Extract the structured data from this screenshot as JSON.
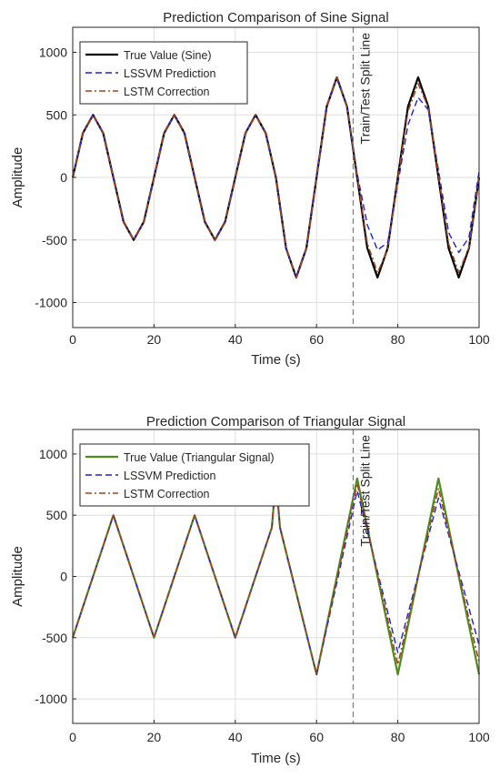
{
  "chart_data": [
    {
      "type": "line",
      "title": "Prediction Comparison of Sine Signal",
      "xlabel": "Time (s)",
      "ylabel": "Amplitude",
      "xlim": [
        0,
        100
      ],
      "ylim": [
        -1200,
        1200
      ],
      "xticks": [
        0,
        20,
        40,
        60,
        80,
        100
      ],
      "yticks": [
        -1000,
        -500,
        0,
        500,
        1000
      ],
      "grid": true,
      "legend_location": "top-left",
      "split": {
        "x": 69,
        "label": "Train/Test Split Line"
      },
      "series": [
        {
          "name": "True Value (Sine)",
          "color": "#000000",
          "style": "solid",
          "x": [
            0,
            2.5,
            5,
            7.5,
            10,
            12.5,
            15,
            17.5,
            20,
            22.5,
            25,
            27.5,
            30,
            32.5,
            35,
            37.5,
            40,
            42.5,
            45,
            47.5,
            50,
            52.5,
            55,
            57.5,
            60,
            62.5,
            65,
            67.5,
            70,
            72.5,
            75,
            77.5,
            80,
            82.5,
            85,
            87.5,
            90,
            92.5,
            95,
            97.5,
            100
          ],
          "y": [
            0,
            354,
            500,
            354,
            0,
            -354,
            -500,
            -354,
            0,
            354,
            500,
            354,
            0,
            -354,
            -500,
            -354,
            0,
            354,
            500,
            354,
            0,
            -566,
            -800,
            -566,
            0,
            566,
            800,
            566,
            0,
            -566,
            -800,
            -566,
            0,
            566,
            800,
            566,
            0,
            -566,
            -800,
            -566,
            0
          ]
        },
        {
          "name": "LSSVM Prediction",
          "color": "#1f1fd6",
          "style": "dashed",
          "x": [
            0,
            2.5,
            5,
            7.5,
            10,
            12.5,
            15,
            17.5,
            20,
            22.5,
            25,
            27.5,
            30,
            32.5,
            35,
            37.5,
            40,
            42.5,
            45,
            47.5,
            50,
            52.5,
            55,
            57.5,
            60,
            62.5,
            65,
            67.5,
            70,
            72.5,
            75,
            77.5,
            80,
            82.5,
            85,
            87.5,
            90,
            92.5,
            95,
            97.5,
            100
          ],
          "y": [
            0,
            354,
            500,
            354,
            0,
            -354,
            -500,
            -354,
            0,
            354,
            500,
            354,
            0,
            -354,
            -500,
            -354,
            0,
            354,
            500,
            354,
            0,
            -566,
            -800,
            -566,
            0,
            566,
            800,
            566,
            30,
            -380,
            -580,
            -520,
            -50,
            420,
            640,
            540,
            60,
            -440,
            -600,
            -480,
            50
          ]
        },
        {
          "name": "LSTM Correction",
          "color": "#a0451c",
          "style": "dashdot",
          "x": [
            0,
            2.5,
            5,
            7.5,
            10,
            12.5,
            15,
            17.5,
            20,
            22.5,
            25,
            27.5,
            30,
            32.5,
            35,
            37.5,
            40,
            42.5,
            45,
            47.5,
            50,
            52.5,
            55,
            57.5,
            60,
            62.5,
            65,
            67.5,
            70,
            72.5,
            75,
            77.5,
            80,
            82.5,
            85,
            87.5,
            90,
            92.5,
            95,
            97.5,
            100
          ],
          "y": [
            0,
            354,
            500,
            354,
            0,
            -354,
            -500,
            -354,
            0,
            354,
            500,
            354,
            0,
            -354,
            -500,
            -354,
            0,
            354,
            500,
            354,
            0,
            -566,
            -800,
            -566,
            0,
            566,
            800,
            566,
            10,
            -530,
            -760,
            -580,
            -10,
            530,
            750,
            560,
            20,
            -530,
            -760,
            -560,
            0
          ]
        }
      ]
    },
    {
      "type": "line",
      "title": "Prediction Comparison of Triangular Signal",
      "xlabel": "Time (s)",
      "ylabel": "Amplitude",
      "xlim": [
        0,
        100
      ],
      "ylim": [
        -1200,
        1200
      ],
      "xticks": [
        0,
        20,
        40,
        60,
        80,
        100
      ],
      "yticks": [
        -1000,
        -500,
        0,
        500,
        1000
      ],
      "grid": true,
      "legend_location": "top-left",
      "split": {
        "x": 69,
        "label": "Train/Test Split Line"
      },
      "series": [
        {
          "name": "True Value (Triangular Signal)",
          "color": "#4d8c1a",
          "style": "solid",
          "x": [
            0,
            10,
            20,
            30,
            40,
            49,
            50,
            51,
            60,
            70,
            80,
            90,
            100
          ],
          "y": [
            -500,
            500,
            -500,
            500,
            -500,
            400,
            800,
            400,
            -800,
            800,
            -800,
            800,
            -800
          ]
        },
        {
          "name": "LSSVM Prediction",
          "color": "#1f1fd6",
          "style": "dashed",
          "x": [
            0,
            10,
            20,
            30,
            40,
            49,
            50,
            51,
            60,
            70,
            80,
            90,
            100
          ],
          "y": [
            -500,
            500,
            -500,
            500,
            -500,
            400,
            800,
            400,
            -800,
            700,
            -620,
            640,
            -560
          ]
        },
        {
          "name": "LSTM Correction",
          "color": "#a0451c",
          "style": "dashdot",
          "x": [
            0,
            10,
            20,
            30,
            40,
            49,
            50,
            51,
            60,
            70,
            80,
            90,
            100
          ],
          "y": [
            -500,
            500,
            -500,
            500,
            -500,
            400,
            800,
            400,
            -800,
            760,
            -720,
            720,
            -700
          ]
        }
      ]
    }
  ]
}
